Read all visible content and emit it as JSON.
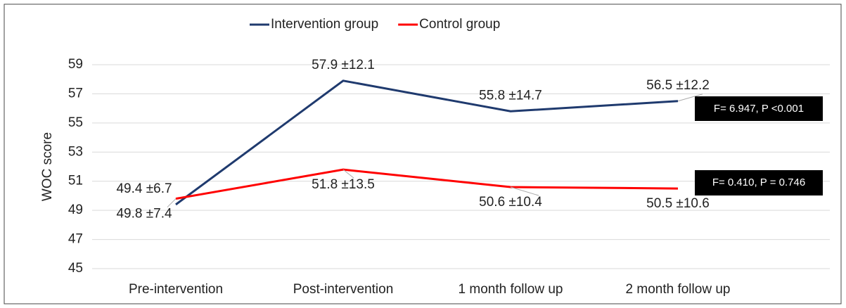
{
  "chart_data": {
    "type": "line",
    "y_axis_label": "WOC score",
    "categories": [
      "Pre-intervention",
      "Post-intervention",
      "1 month follow up",
      "2 month follow up"
    ],
    "series": [
      {
        "name": "Intervention group",
        "color": "#1f3a6e",
        "values": [
          49.4,
          57.9,
          55.8,
          56.5
        ],
        "value_labels": [
          "49.4 ±6.7",
          "57.9 ±12.1",
          "55.8 ±14.7",
          "56.5 ±12.2"
        ]
      },
      {
        "name": "Control group",
        "color": "#ff0000",
        "values": [
          49.8,
          51.8,
          50.6,
          50.5
        ],
        "value_labels": [
          "49.8 ±7.4",
          "51.8 ±13.5",
          "50.6 ±10.4",
          "50.5 ±10.6"
        ]
      }
    ],
    "ylim": [
      45,
      59
    ],
    "yticks": [
      45,
      47,
      49,
      51,
      53,
      55,
      57,
      59
    ],
    "grid": true,
    "legend": "top",
    "annotations": [
      "F= 6.947, P <0.001",
      "F= 0.410, P = 0.746"
    ]
  }
}
